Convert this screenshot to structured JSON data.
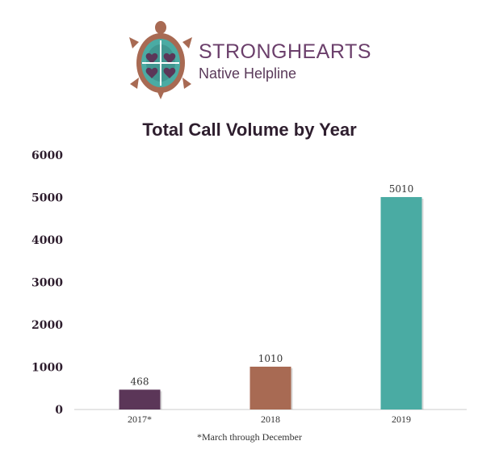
{
  "logo": {
    "brand_part1": "STRONG",
    "brand_part2": "HEARTS",
    "subtitle": "Native Helpline",
    "icon": "turtle-logo"
  },
  "chart_data": {
    "type": "bar",
    "title": "Total Call Volume by Year",
    "categories": [
      "2017*",
      "2018",
      "2019"
    ],
    "values": [
      468,
      1010,
      5010
    ],
    "colors": [
      "#5b3658",
      "#a86a53",
      "#4aaba3"
    ],
    "ylim": [
      0,
      6000
    ],
    "yticks": [
      0,
      1000,
      2000,
      3000,
      4000,
      5000,
      6000
    ],
    "xlabel": "",
    "ylabel": "",
    "grid": false,
    "footnote": "*March through December"
  }
}
